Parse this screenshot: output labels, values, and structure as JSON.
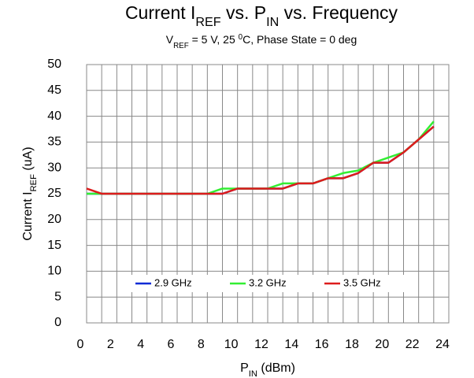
{
  "chart_data": {
    "type": "line",
    "title": [
      "Current I",
      "REF",
      " vs. P",
      "IN",
      " vs. Frequency"
    ],
    "subtitle": [
      "V",
      "REF",
      " = 5 V, 25 ",
      "0",
      "C, Phase State = 0 deg"
    ],
    "ylabel": [
      "Current I",
      "REF",
      " (uA)"
    ],
    "xlabel": [
      "P",
      "IN",
      " (dBm)"
    ],
    "x": [
      0,
      1,
      2,
      3,
      4,
      5,
      6,
      7,
      8,
      9,
      10,
      11,
      12,
      13,
      14,
      15,
      16,
      17,
      18,
      19,
      20,
      21,
      22,
      23
    ],
    "series": [
      {
        "name": "2.9 GHz",
        "color": "#0a2bd6",
        "values": [
          25,
          25,
          25,
          25,
          25,
          25,
          25,
          25,
          25,
          25,
          26,
          26,
          26,
          26,
          27,
          27,
          28,
          28,
          29,
          31,
          31,
          33,
          35.5,
          38
        ]
      },
      {
        "name": "3.2 GHz",
        "color": "#33ee33",
        "values": [
          25,
          25,
          25,
          25,
          25,
          25,
          25,
          25,
          25,
          26,
          26,
          26,
          26,
          27,
          27,
          27,
          28,
          29,
          29.5,
          31,
          32,
          33,
          35.5,
          39
        ]
      },
      {
        "name": "3.5 GHz",
        "color": "#dd1c1c",
        "values": [
          26,
          25,
          25,
          25,
          25,
          25,
          25,
          25,
          25,
          25,
          26,
          26,
          26,
          26,
          27,
          27,
          28,
          28,
          29,
          31,
          31,
          33,
          35.5,
          38
        ]
      }
    ],
    "xlim": [
      0,
      24
    ],
    "xticks": [
      0,
      2,
      4,
      6,
      8,
      10,
      12,
      14,
      16,
      18,
      20,
      22,
      24
    ],
    "xminorticks": [
      1,
      3,
      5,
      7,
      9,
      11,
      13,
      15,
      17,
      19,
      21,
      23
    ],
    "ylim": [
      0,
      50
    ],
    "yticks": [
      0,
      5,
      10,
      15,
      20,
      25,
      30,
      35,
      40,
      45,
      50
    ],
    "grid": true,
    "legend": "bottom"
  }
}
